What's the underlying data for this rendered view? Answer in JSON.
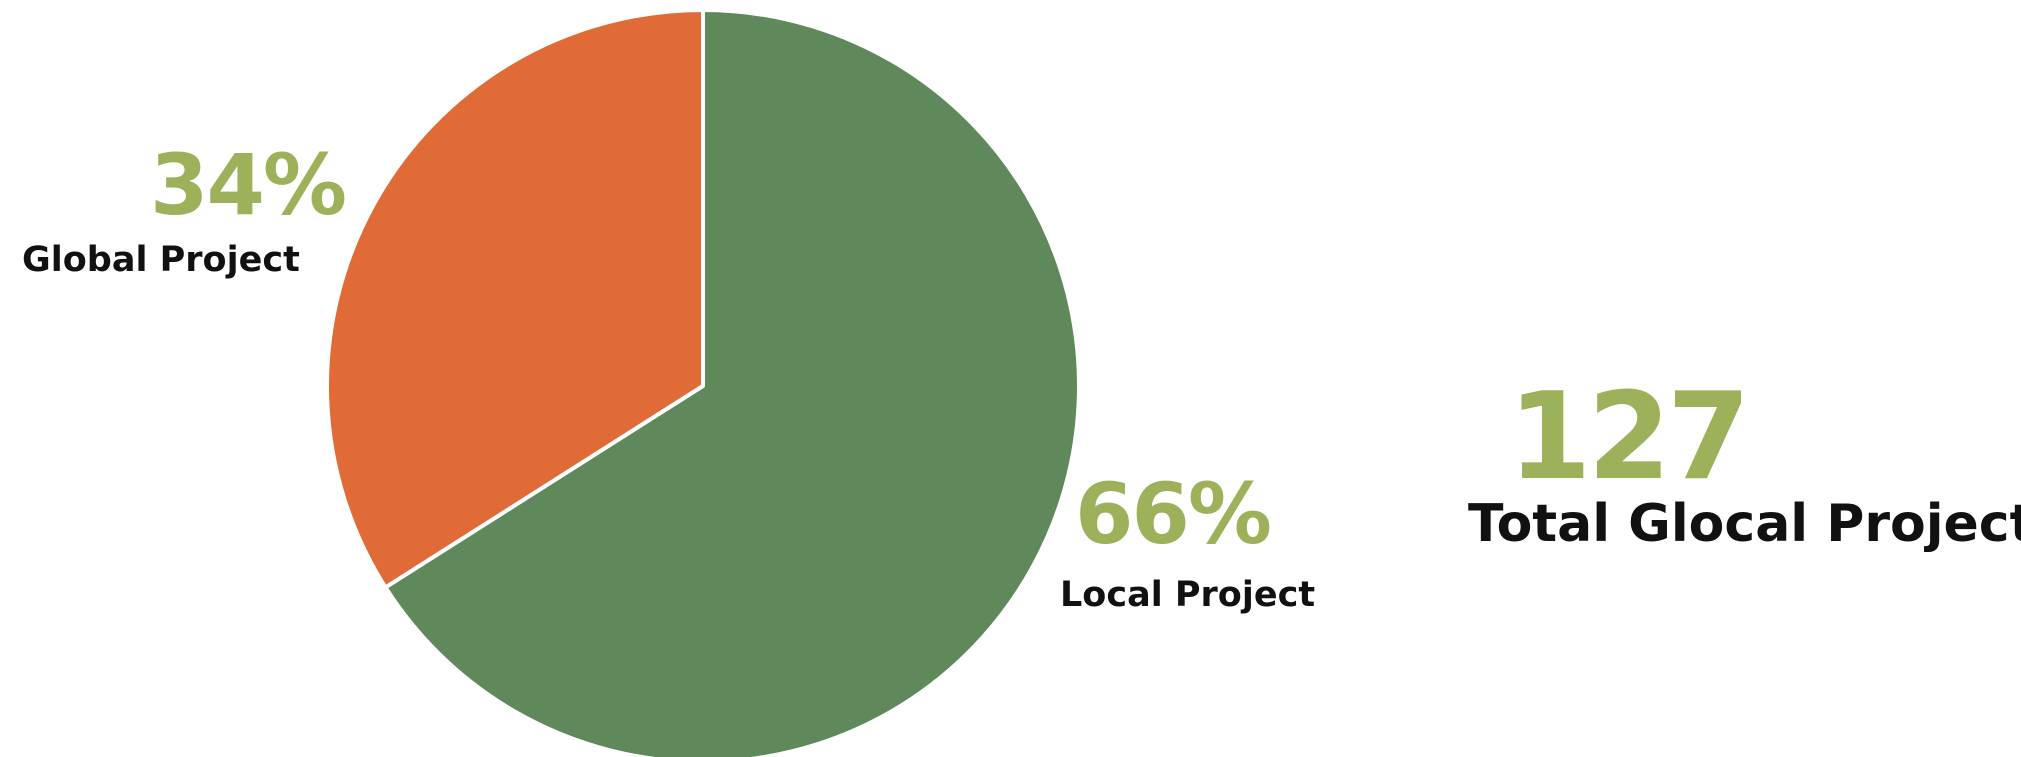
{
  "chart_data": {
    "type": "pie",
    "categories": [
      "Global Project",
      "Local Project"
    ],
    "values": [
      34,
      66
    ],
    "value_labels": [
      "34%",
      "66%"
    ],
    "colors": [
      "#e06b37",
      "#5f885b"
    ],
    "start_angle_deg": 0,
    "direction": "counterclockwise",
    "legend": "none"
  },
  "total": {
    "value": "127",
    "label": "Total Glocal Project"
  },
  "colors": {
    "accent_text": "#9db05a",
    "label_text": "#111111",
    "separator": "#ffffff"
  }
}
